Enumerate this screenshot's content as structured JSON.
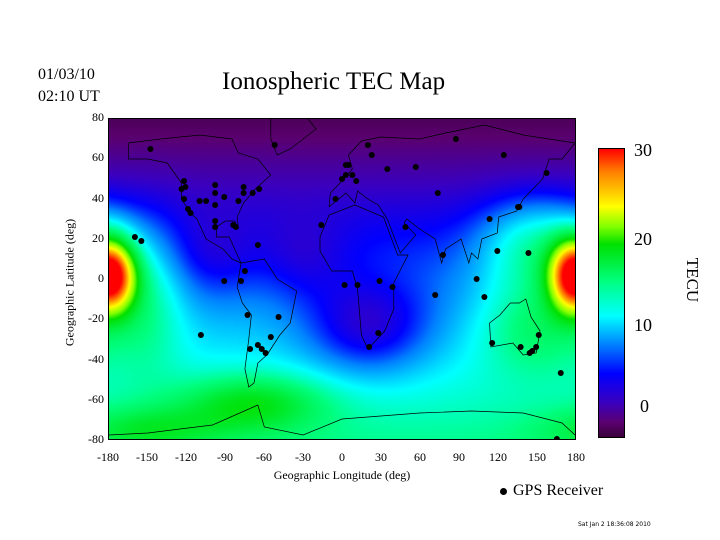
{
  "header": {
    "date": "01/03/10",
    "time": "02:10 UT",
    "title": "Ionospheric TEC Map"
  },
  "chart_data": {
    "type": "heatmap",
    "title": "Ionospheric TEC Map",
    "xlabel": "Geographic Longitude (deg)",
    "ylabel": "Geographic Latitude (deg)",
    "xlim": [
      -180,
      180
    ],
    "ylim": [
      -80,
      80
    ],
    "xticks": [
      "-180",
      "-150",
      "-120",
      "-90",
      "-60",
      "-30",
      "0",
      "30",
      "60",
      "90",
      "120",
      "150",
      "180"
    ],
    "yticks": [
      "80",
      "60",
      "40",
      "20",
      "0",
      "-20",
      "-40",
      "-60",
      "-80"
    ],
    "colorbar": {
      "label": "TECU",
      "range": [
        0,
        30
      ],
      "ticks": [
        "30",
        "20",
        "10",
        "0"
      ]
    },
    "legend": {
      "label": "GPS Receiver"
    },
    "receivers": [
      [
        -148,
        65
      ],
      [
        -52,
        67
      ],
      [
        -160,
        21
      ],
      [
        -155,
        19
      ],
      [
        -122,
        49
      ],
      [
        -121,
        46
      ],
      [
        -124,
        45
      ],
      [
        -122,
        40
      ],
      [
        -119,
        35
      ],
      [
        -117,
        33
      ],
      [
        -110,
        39
      ],
      [
        -105,
        39
      ],
      [
        -98,
        47
      ],
      [
        -98,
        43
      ],
      [
        -98,
        37
      ],
      [
        -98,
        29
      ],
      [
        -98,
        26
      ],
      [
        -91,
        41
      ],
      [
        -80,
        39
      ],
      [
        -76,
        46
      ],
      [
        -76,
        43
      ],
      [
        -69,
        43
      ],
      [
        -64,
        45
      ],
      [
        -84,
        27
      ],
      [
        -82,
        26
      ],
      [
        -65,
        17
      ],
      [
        -75,
        4
      ],
      [
        -91,
        -1
      ],
      [
        -78,
        -1
      ],
      [
        -73,
        -18
      ],
      [
        -109,
        -28
      ],
      [
        -71,
        -35
      ],
      [
        -65,
        -33
      ],
      [
        -62,
        -35
      ],
      [
        -59,
        -37
      ],
      [
        -55,
        -29
      ],
      [
        -49,
        -19
      ],
      [
        -5,
        40
      ],
      [
        -16,
        27
      ],
      [
        0,
        50
      ],
      [
        3,
        52
      ],
      [
        8,
        52
      ],
      [
        11,
        49
      ],
      [
        5,
        57
      ],
      [
        3,
        57
      ],
      [
        20,
        67
      ],
      [
        23,
        62
      ],
      [
        35,
        55
      ],
      [
        57,
        56
      ],
      [
        2,
        -3
      ],
      [
        12,
        -3
      ],
      [
        29,
        -1
      ],
      [
        39,
        -4
      ],
      [
        28,
        -27
      ],
      [
        21,
        -34
      ],
      [
        49,
        26
      ],
      [
        74,
        43
      ],
      [
        78,
        12
      ],
      [
        72,
        -8
      ],
      [
        88,
        70
      ],
      [
        114,
        30
      ],
      [
        120,
        14
      ],
      [
        104,
        0
      ],
      [
        110,
        -9
      ],
      [
        116,
        -32
      ],
      [
        138,
        -34
      ],
      [
        145,
        -37
      ],
      [
        150,
        -34
      ],
      [
        152,
        -28
      ],
      [
        147,
        -36
      ],
      [
        136,
        36
      ],
      [
        137,
        36
      ],
      [
        144,
        13
      ],
      [
        125,
        62
      ],
      [
        158,
        53
      ],
      [
        169,
        -47
      ],
      [
        166,
        -80
      ]
    ]
  },
  "footer": {
    "timestamp": "Sat Jan  2 18:36:08 2010"
  }
}
